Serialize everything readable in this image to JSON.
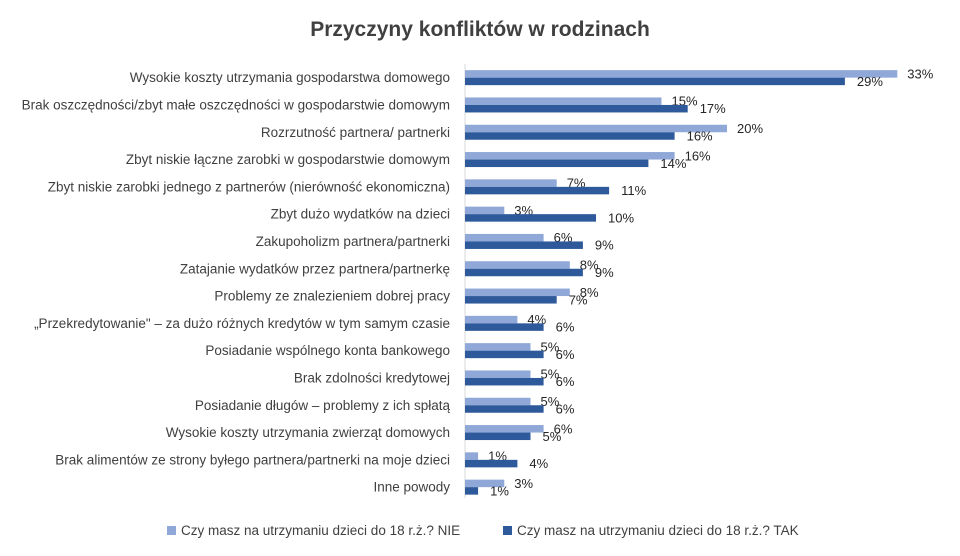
{
  "chart_data": {
    "type": "bar",
    "orientation": "horizontal",
    "title": "Przyczyny konfliktów w rodzinach",
    "categories": [
      "Wysokie koszty utrzymania gospodarstwa domowego",
      "Brak oszczędności/zbyt małe oszczędności w gospodarstwie domowym",
      "Rozrzutność partnera/ partnerki",
      "Zbyt niskie łączne zarobki w gospodarstwie domowym",
      "Zbyt niskie zarobki jednego z partnerów (nierówność ekonomiczna)",
      "Zbyt dużo wydatków na dzieci",
      "Zakupoholizm partnera/partnerki",
      "Zatajanie wydatków przez partnera/partnerkę",
      "Problemy ze znalezieniem dobrej pracy",
      "„Przekredytowanie\" – za dużo różnych kredytów w tym samym czasie",
      "Posiadanie wspólnego konta bankowego",
      "Brak zdolności kredytowej",
      "Posiadanie długów – problemy z ich spłatą",
      "Wysokie koszty utrzymania zwierząt domowych",
      "Brak alimentów ze strony byłego partnera/partnerki na moje dzieci",
      "Inne powody"
    ],
    "series": [
      {
        "name": "Czy masz na utrzymaniu dzieci do 18 r.ż.? NIE",
        "color": "#8fa8d8",
        "values": [
          33,
          15,
          20,
          16,
          7,
          3,
          6,
          8,
          8,
          4,
          5,
          5,
          5,
          6,
          1,
          3
        ],
        "labels": [
          "33%",
          "15%",
          "20%",
          "16%",
          "7%",
          "3%",
          "6%",
          "8%",
          "8%",
          "4%",
          "5%",
          "5%",
          "5%",
          "6%",
          "1%",
          "3%"
        ]
      },
      {
        "name": "Czy masz na utrzymaniu dzieci do 18 r.ż.? TAK",
        "color": "#2e5a9c",
        "values": [
          29,
          17,
          16,
          14,
          11,
          10,
          9,
          9,
          7,
          6,
          6,
          6,
          6,
          5,
          4,
          1
        ],
        "labels": [
          "29%",
          "17%",
          "16%",
          "14%",
          "11%",
          "10%",
          "9%",
          "9%",
          "7%",
          "6%",
          "6%",
          "6%",
          "6%",
          "5%",
          "4%",
          "1%"
        ]
      }
    ],
    "value_unit": "%",
    "value_axis_visible": false,
    "grid": false,
    "legend_position": "bottom"
  }
}
